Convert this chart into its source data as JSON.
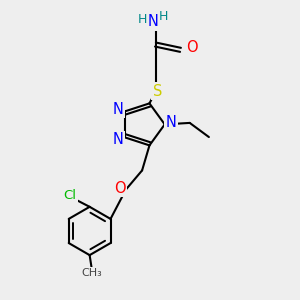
{
  "bg_color": "#eeeeee",
  "bond_color": "#000000",
  "bond_width": 1.5,
  "label_colors": {
    "N": "#0000ff",
    "O": "#ff0000",
    "S": "#cccc00",
    "Cl": "#00bb00",
    "H": "#008888",
    "C": "#000000"
  },
  "figsize": [
    3.0,
    3.0
  ],
  "dpi": 100
}
